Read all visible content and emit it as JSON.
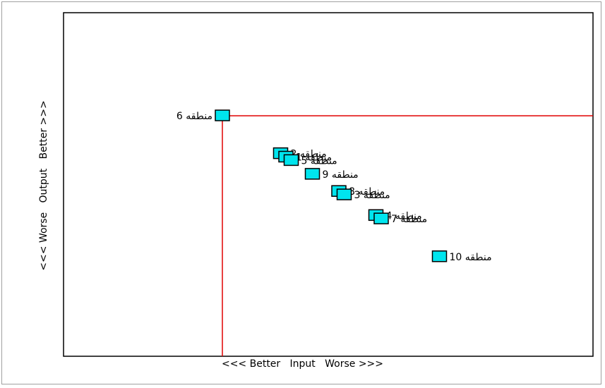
{
  "chart_data": {
    "type": "scatter",
    "xlabel": "<<< Better   Input   Worse >>>",
    "ylabel": "<<< Worse   Output   Better >>>",
    "xlim": [
      0,
      100
    ],
    "ylim": [
      0,
      100
    ],
    "grid": false,
    "colors": {
      "marker": "#00e5ee",
      "marker_stroke": "#000000",
      "reference_line": "#e00000",
      "frame": "#000000"
    },
    "reference_point": {
      "label": "منطقه 6",
      "x": 30,
      "y": 70
    },
    "points": [
      {
        "label": "منطقه 6",
        "x": 30,
        "y": 70
      },
      {
        "label": "منطقه 2",
        "x": 41,
        "y": 59
      },
      {
        "label": "منطقه 1",
        "x": 42,
        "y": 58
      },
      {
        "label": "منطقه 5",
        "x": 43,
        "y": 57
      },
      {
        "label": "منطقه 9",
        "x": 47,
        "y": 53
      },
      {
        "label": "منطقه 8",
        "x": 52,
        "y": 48
      },
      {
        "label": "منطقه 3",
        "x": 53,
        "y": 47
      },
      {
        "label": "منطقه 4",
        "x": 59,
        "y": 41
      },
      {
        "label": "منطقه 7",
        "x": 60,
        "y": 40
      },
      {
        "label": "منطقه 10",
        "x": 71,
        "y": 29
      }
    ]
  }
}
